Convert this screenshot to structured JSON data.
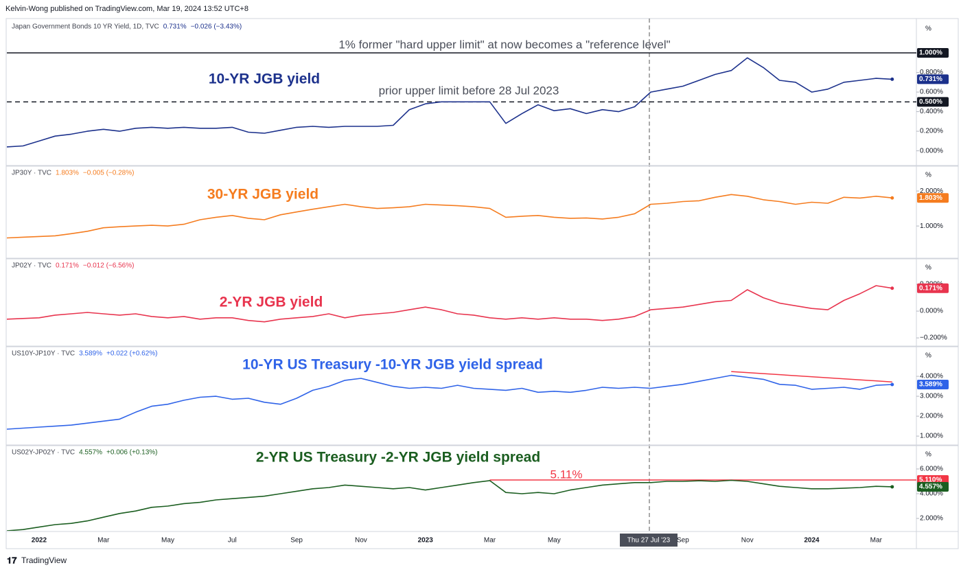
{
  "header": "Kelvin-Wong published on TradingView.com, Mar 19, 2024 13:52 UTC+8",
  "footer": "TradingView",
  "crosshair_label": "Thu 27 Jul '23",
  "chart_data": [
    {
      "type": "line",
      "title": "10-YR JGB yield",
      "color": "#1c318c",
      "legend": [
        "Japan Government Bonds 10 YR Yield, 1D, TVC",
        "0.731%",
        "−0.026 (−3.43%)"
      ],
      "unit": "%",
      "annotations": [
        "1% former \"hard upper limit\" at now becomes a \"reference level\"",
        "prior upper limit before 28 Jul 2023"
      ],
      "hlines": [
        {
          "value": 1,
          "label": "1.000%",
          "style": "solid",
          "color": "#131722"
        },
        {
          "value": 0.5,
          "label": "0.500%",
          "style": "dashed",
          "color": "#131722"
        }
      ],
      "last_label": {
        "value": 0.731,
        "label": "0.731%"
      },
      "ylim": [
        -0.15,
        1.33
      ],
      "yticks": [
        {
          "value": 0,
          "label": "0.000%"
        },
        {
          "value": 0.2,
          "label": "0.200%"
        },
        {
          "value": 0.4,
          "label": "0.400%"
        },
        {
          "value": 0.6,
          "label": "0.600%"
        },
        {
          "value": 0.8,
          "label": "0.800%"
        }
      ],
      "values": [
        0.04,
        0.05,
        0.1,
        0.15,
        0.17,
        0.2,
        0.22,
        0.2,
        0.23,
        0.24,
        0.23,
        0.24,
        0.23,
        0.23,
        0.24,
        0.19,
        0.18,
        0.21,
        0.24,
        0.25,
        0.24,
        0.25,
        0.25,
        0.25,
        0.26,
        0.42,
        0.48,
        0.5,
        0.5,
        0.5,
        0.5,
        0.28,
        0.38,
        0.47,
        0.41,
        0.43,
        0.38,
        0.42,
        0.4,
        0.45,
        0.6,
        0.63,
        0.66,
        0.72,
        0.78,
        0.82,
        0.95,
        0.85,
        0.72,
        0.7,
        0.6,
        0.63,
        0.7,
        0.72,
        0.74,
        0.731
      ]
    },
    {
      "type": "line",
      "title": "30-YR JGB yield",
      "color": "#f57c1f",
      "legend": [
        "JP30Y · TVC",
        "1.803%",
        "−0.005 (−0.28%)"
      ],
      "unit": "%",
      "last_label": {
        "value": 1.803,
        "label": "1.803%"
      },
      "ylim": [
        0.1,
        2.69
      ],
      "yticks": [
        {
          "value": 1,
          "label": "1.000%"
        },
        {
          "value": 2,
          "label": "2.000%"
        }
      ],
      "values": [
        0.66,
        0.68,
        0.7,
        0.72,
        0.78,
        0.85,
        0.95,
        0.98,
        1.0,
        1.02,
        1.0,
        1.05,
        1.18,
        1.25,
        1.3,
        1.22,
        1.18,
        1.32,
        1.4,
        1.48,
        1.55,
        1.62,
        1.55,
        1.5,
        1.52,
        1.55,
        1.62,
        1.6,
        1.58,
        1.55,
        1.5,
        1.25,
        1.28,
        1.3,
        1.25,
        1.22,
        1.23,
        1.2,
        1.25,
        1.35,
        1.62,
        1.65,
        1.7,
        1.72,
        1.82,
        1.9,
        1.85,
        1.75,
        1.7,
        1.62,
        1.68,
        1.65,
        1.82,
        1.8,
        1.85,
        1.803
      ]
    },
    {
      "type": "line",
      "title": "2-YR JGB yield",
      "color": "#e8344e",
      "legend": [
        "JP02Y · TVC",
        "0.171%",
        "−0.012 (−6.56%)"
      ],
      "unit": "%",
      "last_label": {
        "value": 0.171,
        "label": "0.171%"
      },
      "ylim": [
        -0.256,
        0.385
      ],
      "yticks": [
        {
          "value": -0.2,
          "label": "−0.200%"
        },
        {
          "value": 0,
          "label": "0.000%"
        },
        {
          "value": 0.2,
          "label": "0.200%"
        }
      ],
      "values": [
        -0.06,
        -0.055,
        -0.05,
        -0.03,
        -0.02,
        -0.01,
        -0.02,
        -0.03,
        -0.02,
        -0.04,
        -0.05,
        -0.04,
        -0.06,
        -0.05,
        -0.05,
        -0.07,
        -0.08,
        -0.06,
        -0.05,
        -0.04,
        -0.02,
        -0.05,
        -0.03,
        -0.02,
        -0.01,
        0.01,
        0.03,
        0.01,
        -0.02,
        -0.03,
        -0.05,
        -0.06,
        -0.05,
        -0.06,
        -0.05,
        -0.06,
        -0.06,
        -0.07,
        -0.06,
        -0.04,
        0.01,
        0.02,
        0.03,
        0.05,
        0.07,
        0.08,
        0.16,
        0.1,
        0.06,
        0.04,
        0.02,
        0.01,
        0.08,
        0.13,
        0.19,
        0.171
      ]
    },
    {
      "type": "line",
      "title": "10-YR US Treasury -10-YR JGB yield spread",
      "color": "#2f63e8",
      "legend": [
        "US10Y-JP10Y · TVC",
        "3.589%",
        "+0.022 (+0.62%)"
      ],
      "unit": "%",
      "last_label": {
        "value": 3.589,
        "label": "3.589%"
      },
      "trendline": {
        "color": "#f23645",
        "from": 45,
        "to": 55,
        "values": [
          4.24,
          3.72
        ]
      },
      "ylim": [
        0.59,
        5.45
      ],
      "yticks": [
        {
          "value": 1,
          "label": "1.000%"
        },
        {
          "value": 2,
          "label": "2.000%"
        },
        {
          "value": 3,
          "label": "3.000%"
        },
        {
          "value": 4,
          "label": "4.000%"
        }
      ],
      "values": [
        1.35,
        1.4,
        1.45,
        1.5,
        1.55,
        1.65,
        1.75,
        1.85,
        2.2,
        2.5,
        2.6,
        2.8,
        2.95,
        3.0,
        2.85,
        2.9,
        2.7,
        2.6,
        2.9,
        3.3,
        3.5,
        3.8,
        3.9,
        3.7,
        3.5,
        3.4,
        3.45,
        3.4,
        3.55,
        3.4,
        3.35,
        3.3,
        3.4,
        3.2,
        3.25,
        3.2,
        3.3,
        3.45,
        3.4,
        3.45,
        3.4,
        3.5,
        3.6,
        3.75,
        3.9,
        4.05,
        3.95,
        3.85,
        3.6,
        3.55,
        3.35,
        3.4,
        3.45,
        3.35,
        3.55,
        3.589
      ]
    },
    {
      "type": "line",
      "title": "2-YR US Treasury -2-YR JGB yield spread",
      "color": "#1b5e20",
      "legend": [
        "US02Y-JP02Y · TVC",
        "4.557%",
        "+0.006 (+0.13%)"
      ],
      "unit": "%",
      "annotations": [
        "5.11%"
      ],
      "hlines": [
        {
          "value": 5.11,
          "label": "5.110%",
          "style": "solid",
          "color": "#f23645",
          "from": 30
        }
      ],
      "last_label": {
        "value": 4.557,
        "label": "4.557%"
      },
      "ylim": [
        1.0,
        7.83
      ],
      "yticks": [
        {
          "value": 2,
          "label": "2.000%"
        },
        {
          "value": 4,
          "label": "4.000%"
        },
        {
          "value": 6,
          "label": "6.000%"
        }
      ],
      "categories": [
        null,
        null,
        "2022",
        null,
        null,
        null,
        "Mar",
        null,
        null,
        null,
        "May",
        null,
        null,
        null,
        "Jul",
        null,
        null,
        null,
        "Sep",
        null,
        null,
        null,
        "Nov",
        null,
        null,
        null,
        "2023",
        null,
        null,
        null,
        "Mar",
        null,
        null,
        null,
        "May",
        null,
        null,
        null,
        null,
        null,
        null,
        null,
        "Sep",
        null,
        null,
        null,
        "Nov",
        null,
        null,
        null,
        "2024",
        null,
        null,
        null,
        "Mar",
        null
      ],
      "values": [
        1.0,
        1.1,
        1.3,
        1.5,
        1.6,
        1.8,
        2.1,
        2.4,
        2.6,
        2.9,
        3.0,
        3.2,
        3.3,
        3.5,
        3.6,
        3.7,
        3.8,
        4.0,
        4.2,
        4.4,
        4.5,
        4.7,
        4.6,
        4.5,
        4.4,
        4.5,
        4.3,
        4.5,
        4.7,
        4.9,
        5.06,
        4.1,
        4.0,
        4.1,
        4.0,
        4.3,
        4.5,
        4.7,
        4.8,
        4.9,
        4.9,
        5.0,
        5.0,
        5.05,
        5.0,
        5.08,
        5.0,
        4.8,
        4.6,
        4.5,
        4.4,
        4.4,
        4.45,
        4.5,
        4.6,
        4.557
      ]
    }
  ]
}
